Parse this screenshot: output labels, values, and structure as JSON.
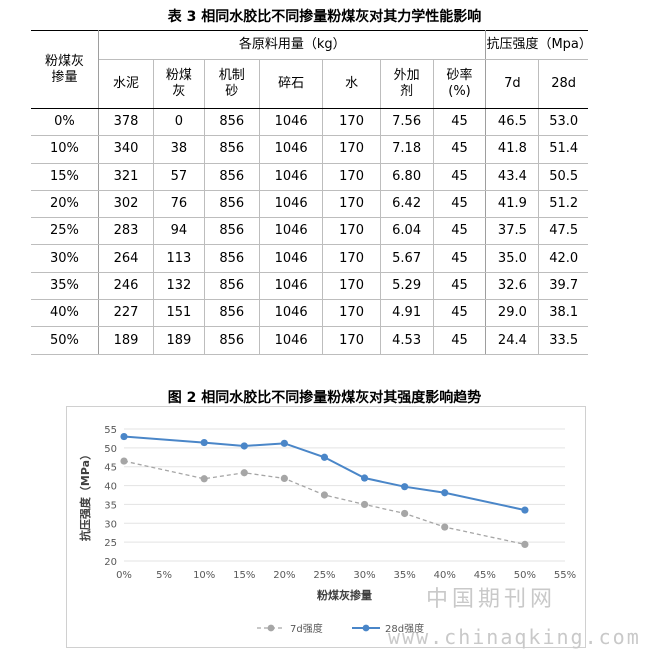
{
  "table": {
    "title": "表 3  相同水胶比不同掺量粉煤灰对其力学性能影响",
    "header": {
      "fly_ash": "粉煤灰\n掺量",
      "materials": "各原料用量（kg）",
      "strength": "抗压强度（Mpa）",
      "cols": [
        "水泥",
        "粉煤\n灰",
        "机制\n砂",
        "碎石",
        "水",
        "外加\n剂",
        "砂率\n(%)",
        "7d",
        "28d"
      ]
    },
    "rows": [
      [
        "0%",
        "378",
        "0",
        "856",
        "1046",
        "170",
        "7.56",
        "45",
        "46.5",
        "53.0"
      ],
      [
        "10%",
        "340",
        "38",
        "856",
        "1046",
        "170",
        "7.18",
        "45",
        "41.8",
        "51.4"
      ],
      [
        "15%",
        "321",
        "57",
        "856",
        "1046",
        "170",
        "6.80",
        "45",
        "43.4",
        "50.5"
      ],
      [
        "20%",
        "302",
        "76",
        "856",
        "1046",
        "170",
        "6.42",
        "45",
        "41.9",
        "51.2"
      ],
      [
        "25%",
        "283",
        "94",
        "856",
        "1046",
        "170",
        "6.04",
        "45",
        "37.5",
        "47.5"
      ],
      [
        "30%",
        "264",
        "113",
        "856",
        "1046",
        "170",
        "5.67",
        "45",
        "35.0",
        "42.0"
      ],
      [
        "35%",
        "246",
        "132",
        "856",
        "1046",
        "170",
        "5.29",
        "45",
        "32.6",
        "39.7"
      ],
      [
        "40%",
        "227",
        "151",
        "856",
        "1046",
        "170",
        "4.91",
        "45",
        "29.0",
        "38.1"
      ],
      [
        "50%",
        "189",
        "189",
        "856",
        "1046",
        "170",
        "4.53",
        "45",
        "24.4",
        "33.5"
      ]
    ]
  },
  "chart_data": {
    "type": "line",
    "title": "图 2   相同水胶比不同掺量粉煤灰对其强度影响趋势",
    "xlabel": "粉煤灰掺量",
    "ylabel": "抗压强度（MPa）",
    "x": [
      0,
      10,
      15,
      20,
      25,
      30,
      35,
      40,
      50
    ],
    "x_ticks": [
      "0%",
      "5%",
      "10%",
      "15%",
      "20%",
      "25%",
      "30%",
      "35%",
      "40%",
      "45%",
      "50%",
      "55%"
    ],
    "xlim": [
      0,
      55
    ],
    "ylim": [
      20,
      55
    ],
    "y_ticks": [
      20,
      25,
      30,
      35,
      40,
      45,
      50,
      55
    ],
    "grid": true,
    "legend_position": "bottom",
    "series": [
      {
        "name": "7d强度",
        "values": [
          46.5,
          41.8,
          43.4,
          41.9,
          37.5,
          35.0,
          32.6,
          29.0,
          24.4
        ],
        "color": "#a6a6a6",
        "style": "dashed"
      },
      {
        "name": "28d强度",
        "values": [
          53.0,
          51.4,
          50.5,
          51.2,
          47.5,
          42.0,
          39.7,
          38.1,
          33.5
        ],
        "color": "#4a86c8",
        "style": "solid"
      }
    ]
  },
  "watermark": {
    "cn": "中国期刊网",
    "url": "www.chinaqking.com"
  }
}
